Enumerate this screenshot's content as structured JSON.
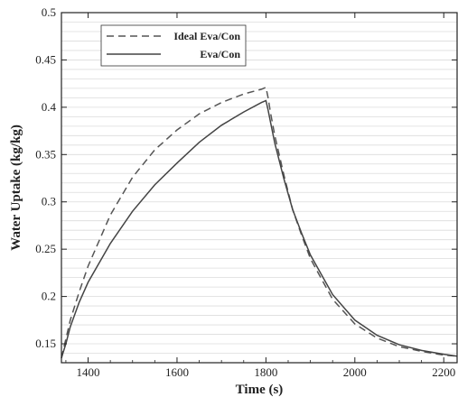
{
  "chart_data": {
    "type": "line",
    "title": "",
    "xlabel": "Time (s)",
    "ylabel": "Water Uptake (kg/kg)",
    "xlim": [
      1340,
      2230
    ],
    "ylim": [
      0.13,
      0.5
    ],
    "xticks": [
      1400,
      1600,
      1800,
      2000,
      2200
    ],
    "xtick_labels": [
      "1400",
      "1600",
      "1800",
      "2000",
      "2200"
    ],
    "yticks": [
      0.15,
      0.2,
      0.25,
      0.3,
      0.35,
      0.4,
      0.45,
      0.5
    ],
    "ytick_labels": [
      "0.15",
      "0.2",
      "0.25",
      "0.3",
      "0.35",
      "0.4",
      "0.45",
      "0.5"
    ],
    "grid": "horizontal",
    "legend_position": "top-left",
    "series": [
      {
        "name": "Ideal Eva/Con",
        "style": "dashed",
        "color": "#555555",
        "x": [
          1340,
          1350,
          1360,
          1380,
          1400,
          1450,
          1500,
          1550,
          1600,
          1650,
          1700,
          1750,
          1790,
          1800,
          1805,
          1810,
          1820,
          1840,
          1860,
          1880,
          1900,
          1950,
          2000,
          2050,
          2100,
          2150,
          2200,
          2230
        ],
        "y": [
          0.135,
          0.155,
          0.175,
          0.205,
          0.232,
          0.286,
          0.326,
          0.355,
          0.376,
          0.393,
          0.405,
          0.414,
          0.419,
          0.421,
          0.41,
          0.395,
          0.37,
          0.329,
          0.292,
          0.265,
          0.24,
          0.197,
          0.171,
          0.156,
          0.147,
          0.142,
          0.138,
          0.137
        ]
      },
      {
        "name": "Eva/Con",
        "style": "solid",
        "color": "#444444",
        "x": [
          1340,
          1350,
          1360,
          1380,
          1400,
          1450,
          1500,
          1550,
          1600,
          1650,
          1700,
          1750,
          1790,
          1800,
          1805,
          1810,
          1820,
          1840,
          1860,
          1880,
          1900,
          1950,
          2000,
          2050,
          2100,
          2150,
          2200,
          2230
        ],
        "y": [
          0.135,
          0.15,
          0.168,
          0.194,
          0.215,
          0.256,
          0.29,
          0.318,
          0.341,
          0.363,
          0.381,
          0.395,
          0.405,
          0.407,
          0.397,
          0.385,
          0.362,
          0.325,
          0.292,
          0.267,
          0.244,
          0.202,
          0.175,
          0.159,
          0.149,
          0.143,
          0.139,
          0.137
        ]
      }
    ]
  }
}
